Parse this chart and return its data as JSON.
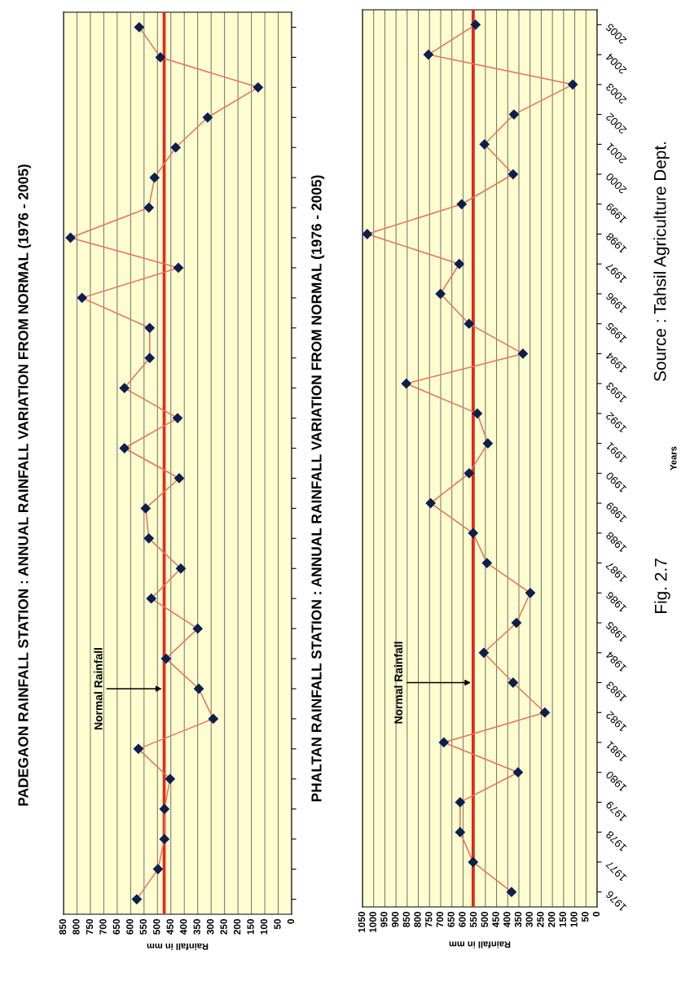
{
  "chart_data": [
    {
      "type": "line",
      "title": "PADEGAON RAINFALL STATION : ANNUAL RAINFALL VARIATION FROM NORMAL (1976 - 2005)",
      "orientation": "horizontal",
      "categories": [
        null,
        null,
        null,
        null,
        null,
        null,
        null,
        null,
        null,
        null,
        null,
        null,
        null,
        null,
        null,
        null,
        null,
        null,
        null,
        null,
        null,
        null,
        null,
        null,
        null,
        null,
        null,
        null,
        null,
        null
      ],
      "values": [
        568,
        489,
        125,
        313,
        432,
        511,
        532,
        824,
        422,
        781,
        529,
        529,
        623,
        425,
        623,
        419,
        544,
        532,
        413,
        523,
        350,
        468,
        346,
        292,
        571,
        453,
        474,
        474,
        498,
        577
      ],
      "color": "#e8735a",
      "marker": "diamond",
      "xlim": [
        850,
        0
      ],
      "xticks": [
        850,
        800,
        750,
        700,
        650,
        600,
        550,
        500,
        450,
        400,
        350,
        300,
        250,
        200,
        150,
        100,
        50,
        0
      ],
      "xlabel": "Rainfall in mm",
      "tick_labels": "x",
      "grid": "x",
      "ref_lines": [
        {
          "axis": "x",
          "value": 475,
          "label": "Normal Rainfall",
          "color": "#e8261a"
        }
      ]
    },
    {
      "type": "line",
      "title": "PHALTAN RAINFALL STATION : ANNUAL RAINFALL VARIATION FROM NORMAL (1976 - 2005)",
      "orientation": "horizontal",
      "categories": [
        "2005",
        "2004",
        "2003",
        "2002",
        "2001",
        "2000",
        "1999",
        "1998",
        "1997",
        "1996",
        "1995",
        "1994",
        "1993",
        "1992",
        "1991",
        "1990",
        "1989",
        "1988",
        "1987",
        "1986",
        "1985",
        "1984",
        "1983",
        "1982",
        "1981",
        "1980",
        "1979",
        "1978",
        "1977",
        "1976"
      ],
      "values": [
        544,
        755,
        109,
        372,
        504,
        376,
        606,
        1029,
        617,
        701,
        573,
        332,
        854,
        536,
        489,
        573,
        745,
        555,
        493,
        299,
        361,
        507,
        376,
        234,
        686,
        354,
        613,
        613,
        555,
        383
      ],
      "color": "#e8735a",
      "marker": "diamond",
      "xlim": [
        1050,
        0
      ],
      "xticks": [
        1050,
        1000,
        950,
        900,
        850,
        800,
        750,
        700,
        650,
        600,
        550,
        500,
        450,
        400,
        350,
        300,
        250,
        200,
        150,
        100,
        50,
        0
      ],
      "xlabel": "Rainfall in mm",
      "ylabel": "Years",
      "grid": "x",
      "ref_lines": [
        {
          "axis": "x",
          "value": 555,
          "label": "Normal Rainfall",
          "color": "#e8261a"
        }
      ],
      "annotations": [
        "Fig. 2.7",
        "Source : Tahsil Agriculture Dept."
      ]
    }
  ]
}
